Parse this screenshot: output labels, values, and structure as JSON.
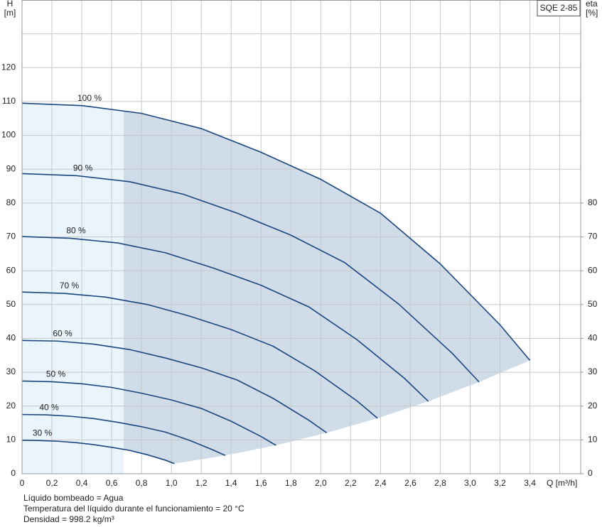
{
  "chart_data": {
    "type": "line",
    "title": "SQE 2-85",
    "y_label": [
      "H",
      "[m]"
    ],
    "y2_label": [
      "eta",
      "[%]"
    ],
    "x_label": "Q [m³/h]",
    "notes": [
      "Líquido bombeado = Agua",
      "Temperatura del líquido durante el funcionamiento = 20 °C",
      "Densidad = 998.2 kg/m³"
    ],
    "xlim": [
      0,
      3.74
    ],
    "ylim": [
      0,
      140
    ],
    "y2lim": [
      0,
      140
    ],
    "xticks": [
      0,
      0.2,
      0.4,
      0.6,
      0.8,
      1.0,
      1.2,
      1.4,
      1.6,
      1.8,
      2.0,
      2.2,
      2.4,
      2.6,
      2.8,
      3.0,
      3.2,
      3.4
    ],
    "xtick_labels": [
      "0",
      "0,2",
      "0,4",
      "0,6",
      "0,8",
      "1,0",
      "1,2",
      "1,4",
      "1,6",
      "1,8",
      "2,0",
      "2,2",
      "2,4",
      "2,6",
      "2,8",
      "3,0",
      "3,2",
      "3,4"
    ],
    "yticks": [
      0,
      10,
      20,
      30,
      40,
      50,
      60,
      70,
      80,
      90,
      100,
      110,
      120
    ],
    "y2ticks": [
      0,
      10,
      20,
      30,
      40,
      50,
      60,
      70,
      80
    ],
    "grid": true,
    "operating_range_start_q": 0.68,
    "color": "#1a4680",
    "series": [
      {
        "name": "100 %",
        "x": [
          0,
          0.4,
          0.8,
          1.2,
          1.6,
          2.0,
          2.4,
          2.8,
          3.2,
          3.4
        ],
        "values": [
          109.5,
          108.8,
          106.5,
          102,
          95,
          87,
          77,
          62,
          44,
          33.5
        ]
      },
      {
        "name": "90 %",
        "x": [
          0,
          0.36,
          0.72,
          1.08,
          1.44,
          1.8,
          2.16,
          2.52,
          2.88,
          3.06
        ],
        "values": [
          88.7,
          88.1,
          86.3,
          82.6,
          77.0,
          70.5,
          62.4,
          50.2,
          35.6,
          27.1
        ]
      },
      {
        "name": "80 %",
        "x": [
          0,
          0.32,
          0.64,
          0.96,
          1.28,
          1.6,
          1.92,
          2.24,
          2.56,
          2.72
        ],
        "values": [
          70.1,
          69.6,
          68.2,
          65.3,
          60.8,
          55.7,
          49.3,
          39.7,
          28.2,
          21.4
        ]
      },
      {
        "name": "70 %",
        "x": [
          0,
          0.28,
          0.56,
          0.84,
          1.12,
          1.4,
          1.68,
          1.96,
          2.24,
          2.38
        ],
        "values": [
          53.7,
          53.3,
          52.2,
          50.0,
          46.6,
          42.6,
          37.7,
          30.4,
          21.6,
          16.4
        ]
      },
      {
        "name": "60 %",
        "x": [
          0,
          0.24,
          0.48,
          0.72,
          0.96,
          1.2,
          1.44,
          1.68,
          1.92,
          2.04
        ],
        "values": [
          39.4,
          39.2,
          38.3,
          36.7,
          34.2,
          31.3,
          27.7,
          22.3,
          15.8,
          12.1
        ]
      },
      {
        "name": "50 %",
        "x": [
          0,
          0.2,
          0.4,
          0.6,
          0.8,
          1.0,
          1.2,
          1.4,
          1.6,
          1.7
        ],
        "values": [
          27.4,
          27.2,
          26.6,
          25.5,
          23.8,
          21.8,
          19.3,
          15.5,
          11,
          8.4
        ]
      },
      {
        "name": "40 %",
        "x": [
          0,
          0.16,
          0.32,
          0.48,
          0.64,
          0.8,
          0.96,
          1.12,
          1.28,
          1.36
        ],
        "values": [
          17.5,
          17.4,
          17.0,
          16.3,
          15.2,
          13.9,
          12.3,
          9.9,
          7.0,
          5.4
        ]
      },
      {
        "name": "30 %",
        "x": [
          0,
          0.12,
          0.24,
          0.36,
          0.48,
          0.6,
          0.72,
          0.84,
          0.96,
          1.02
        ],
        "values": [
          9.9,
          9.8,
          9.6,
          9.2,
          8.6,
          7.8,
          6.9,
          5.6,
          4.0,
          3.0
        ]
      }
    ]
  }
}
